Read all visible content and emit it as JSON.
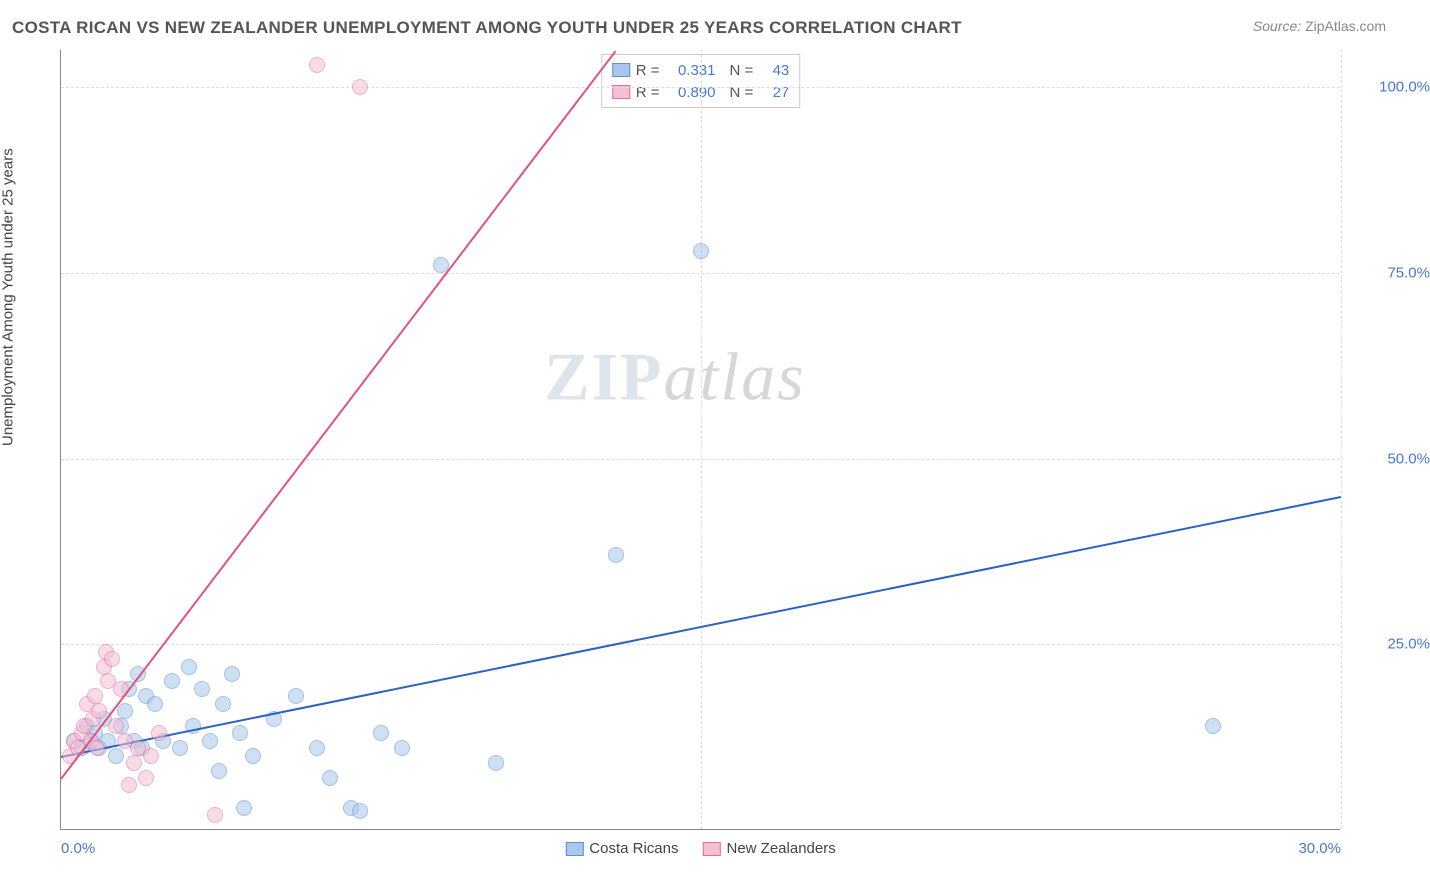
{
  "title": "COSTA RICAN VS NEW ZEALANDER UNEMPLOYMENT AMONG YOUTH UNDER 25 YEARS CORRELATION CHART",
  "source_label": "Source:",
  "source_value": "ZipAtlas.com",
  "y_axis_label": "Unemployment Among Youth under 25 years",
  "watermark_bold": "ZIP",
  "watermark_italic": "atlas",
  "chart": {
    "type": "scatter",
    "xlim": [
      0,
      30
    ],
    "ylim": [
      0,
      105
    ],
    "x_ticks": [
      {
        "v": 0,
        "label": "0.0%",
        "pos": "first"
      },
      {
        "v": 30,
        "label": "30.0%",
        "pos": "last"
      }
    ],
    "y_ticks": [
      {
        "v": 25,
        "label": "25.0%"
      },
      {
        "v": 50,
        "label": "50.0%"
      },
      {
        "v": 75,
        "label": "75.0%"
      },
      {
        "v": 100,
        "label": "100.0%"
      }
    ],
    "grid_y": [
      25,
      50,
      75,
      100
    ],
    "grid_x": [
      15,
      30
    ],
    "background_color": "#ffffff",
    "grid_color": "#e0e0e0",
    "tick_color": "#4878d0",
    "point_radius": 8,
    "point_opacity": 0.55,
    "series": [
      {
        "name": "Costa Ricans",
        "color_fill": "#a9c7eb",
        "color_stroke": "#5b8fd6",
        "trend_color": "#2b63c4",
        "R": "0.331",
        "N": "43",
        "trend": {
          "x1": 0,
          "y1": 10,
          "x2": 30,
          "y2": 45
        },
        "points": [
          [
            0.3,
            12
          ],
          [
            0.5,
            11
          ],
          [
            0.6,
            14
          ],
          [
            0.7,
            12
          ],
          [
            0.8,
            13
          ],
          [
            0.9,
            11
          ],
          [
            1.0,
            15
          ],
          [
            1.1,
            12
          ],
          [
            1.3,
            10
          ],
          [
            1.4,
            14
          ],
          [
            1.5,
            16
          ],
          [
            1.6,
            19
          ],
          [
            1.7,
            12
          ],
          [
            1.8,
            21
          ],
          [
            1.9,
            11
          ],
          [
            2.0,
            18
          ],
          [
            2.2,
            17
          ],
          [
            2.4,
            12
          ],
          [
            2.6,
            20
          ],
          [
            2.8,
            11
          ],
          [
            3.0,
            22
          ],
          [
            3.1,
            14
          ],
          [
            3.3,
            19
          ],
          [
            3.5,
            12
          ],
          [
            3.7,
            8
          ],
          [
            3.8,
            17
          ],
          [
            4.0,
            21
          ],
          [
            4.2,
            13
          ],
          [
            4.3,
            3
          ],
          [
            4.5,
            10
          ],
          [
            5.0,
            15
          ],
          [
            5.5,
            18
          ],
          [
            6.0,
            11
          ],
          [
            6.3,
            7
          ],
          [
            6.8,
            3
          ],
          [
            7.0,
            2.5
          ],
          [
            7.5,
            13
          ],
          [
            8.0,
            11
          ],
          [
            8.9,
            76
          ],
          [
            10.2,
            9
          ],
          [
            13.0,
            37
          ],
          [
            15.0,
            78
          ],
          [
            27.0,
            14
          ]
        ]
      },
      {
        "name": "New Zealanders",
        "color_fill": "#f4bfd1",
        "color_stroke": "#e36fa0",
        "trend_color": "#e0537f",
        "R": "0.890",
        "N": "27",
        "trend": {
          "x1": 0,
          "y1": 7,
          "x2": 13,
          "y2": 105
        },
        "points": [
          [
            0.2,
            10
          ],
          [
            0.3,
            12
          ],
          [
            0.4,
            11
          ],
          [
            0.5,
            13
          ],
          [
            0.55,
            14
          ],
          [
            0.6,
            17
          ],
          [
            0.7,
            12
          ],
          [
            0.75,
            15
          ],
          [
            0.8,
            18
          ],
          [
            0.85,
            11
          ],
          [
            0.9,
            16
          ],
          [
            1.0,
            22
          ],
          [
            1.05,
            24
          ],
          [
            1.1,
            20
          ],
          [
            1.2,
            23
          ],
          [
            1.3,
            14
          ],
          [
            1.4,
            19
          ],
          [
            1.5,
            12
          ],
          [
            1.6,
            6
          ],
          [
            1.7,
            9
          ],
          [
            1.8,
            11
          ],
          [
            2.0,
            7
          ],
          [
            2.1,
            10
          ],
          [
            2.3,
            13
          ],
          [
            3.6,
            2
          ],
          [
            6.0,
            103
          ],
          [
            7.0,
            100
          ]
        ]
      }
    ]
  },
  "stats_box": {
    "r_label": "R =",
    "n_label": "N ="
  },
  "bottom_legend": [
    {
      "label": "Costa Ricans",
      "fill": "#a9c7eb",
      "stroke": "#5b8fd6"
    },
    {
      "label": "New Zealanders",
      "fill": "#f4bfd1",
      "stroke": "#e36fa0"
    }
  ]
}
